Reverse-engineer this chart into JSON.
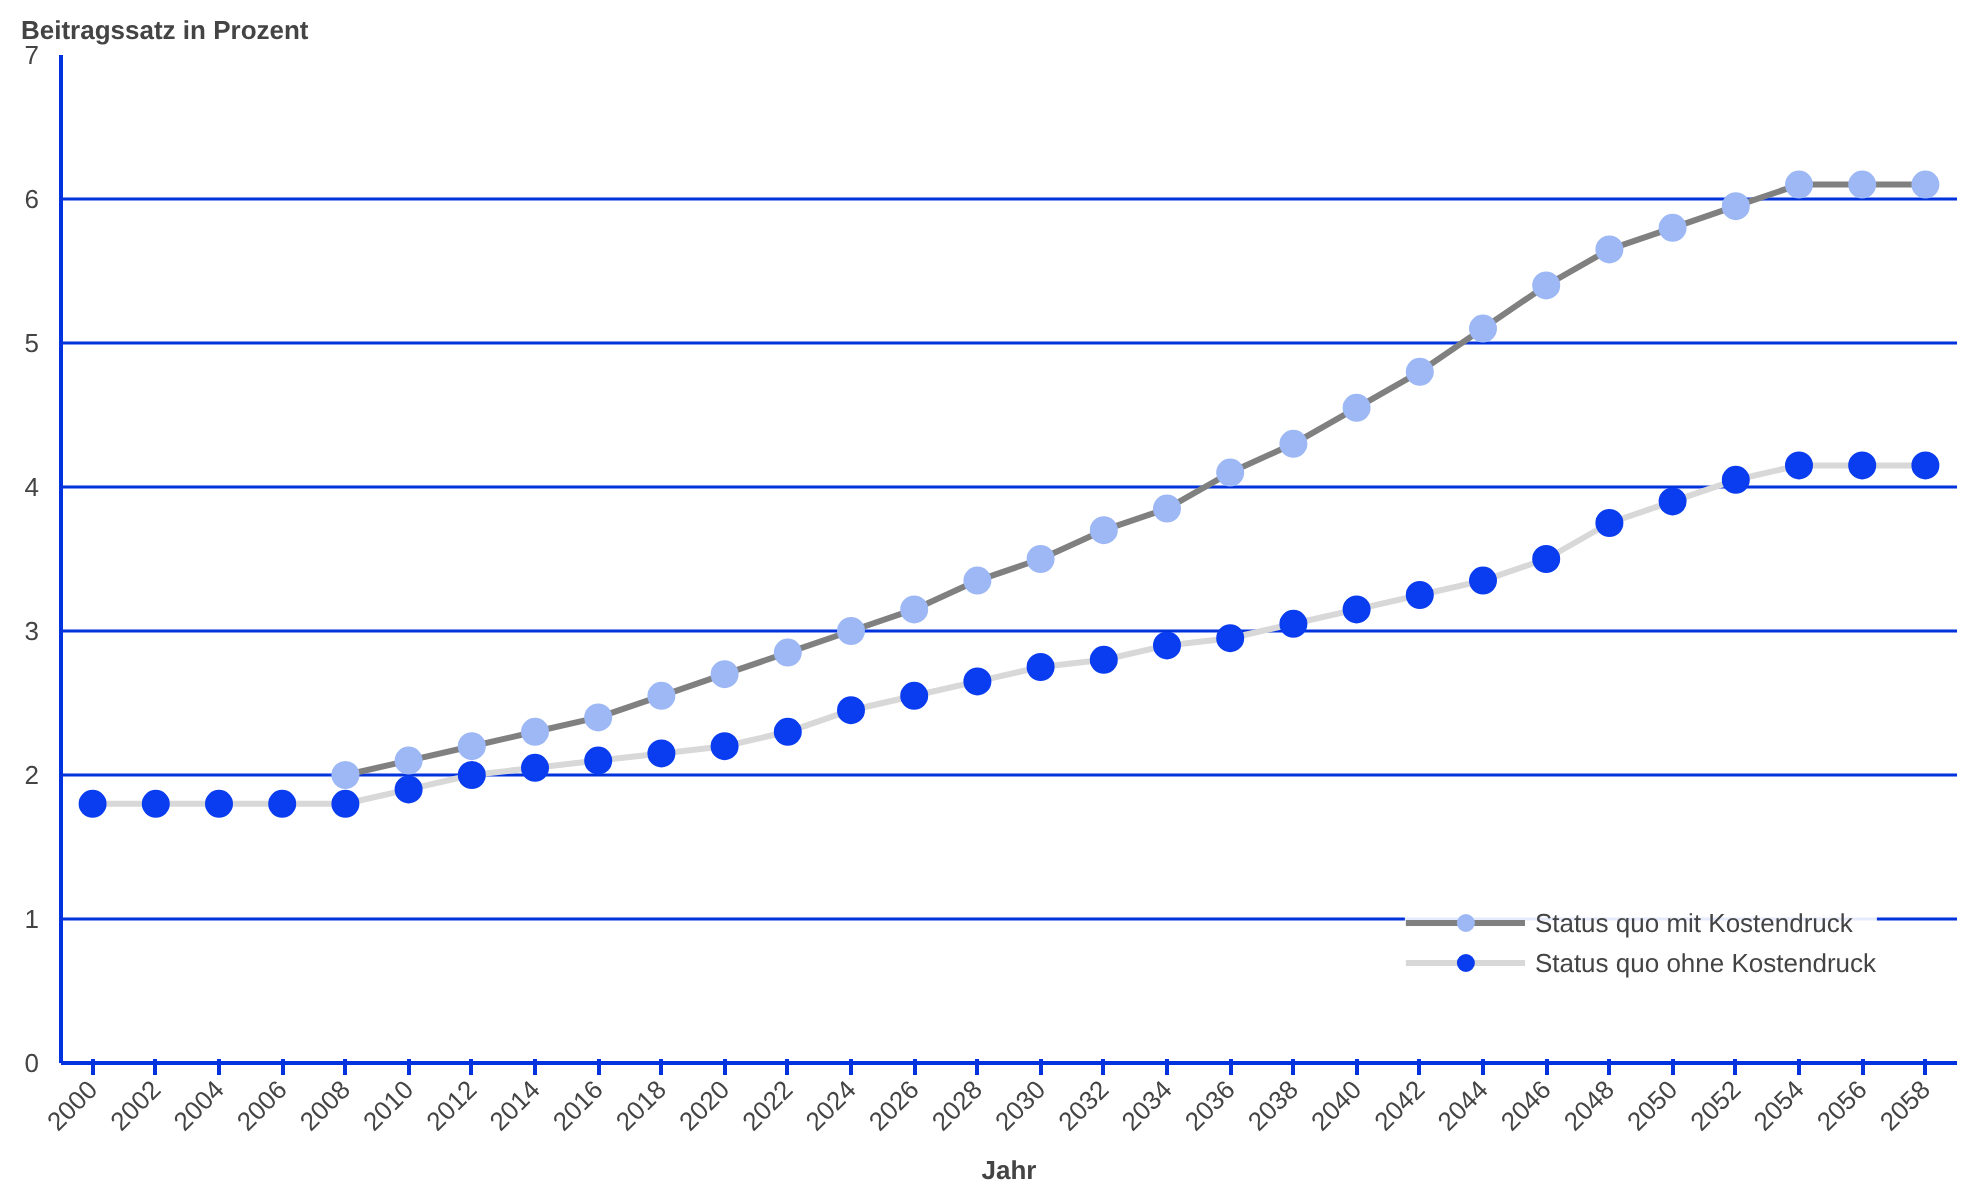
{
  "chart_data": {
    "type": "line",
    "ylabel": "Beitragssatz in Prozent",
    "xlabel": "Jahr",
    "x": [
      2000,
      2002,
      2004,
      2006,
      2008,
      2010,
      2012,
      2014,
      2016,
      2018,
      2020,
      2022,
      2024,
      2026,
      2028,
      2030,
      2032,
      2034,
      2036,
      2038,
      2040,
      2042,
      2044,
      2046,
      2048,
      2050,
      2052,
      2054,
      2056,
      2058
    ],
    "series": [
      {
        "name": "Status quo mit Kostendruck",
        "color": "#808080",
        "colors": [
          "#9db8f5",
          "#9db8f5",
          "#9db8f5",
          "#9db8f5",
          "#9db8f5",
          "#9db8f5",
          "#9db8f5",
          "#9db8f5",
          "#9db8f5",
          "#9db8f5",
          "#9db8f5",
          "#9db8f5",
          "#9db8f5",
          "#9db8f5",
          "#9db8f5",
          "#9db8f5",
          "#9db8f5",
          "#9db8f5",
          "#9db8f5",
          "#9db8f5",
          "#9db8f5",
          "#9db8f5",
          "#9db8f5",
          "#9db8f5",
          "#9db8f5",
          "#9db8f5",
          "#9db8f5",
          "#9db8f5",
          "#9db8f5",
          "#9db8f5"
        ],
        "values": [
          null,
          null,
          null,
          null,
          2.0,
          2.1,
          2.2,
          2.3,
          2.4,
          2.55,
          2.7,
          2.85,
          3.0,
          3.15,
          3.35,
          3.5,
          3.7,
          3.85,
          4.1,
          4.3,
          4.55,
          4.8,
          5.1,
          5.4,
          5.65,
          5.8,
          5.95,
          6.1,
          6.1,
          6.1
        ]
      },
      {
        "name": "Status quo ohne Kostendruck",
        "color": "#d8d8d8",
        "colors": [
          "#0a3cf0",
          "#0a3cf0",
          "#0a3cf0",
          "#0a3cf0",
          "#0a3cf0",
          "#0a3cf0",
          "#0a3cf0",
          "#0a3cf0",
          "#0a3cf0",
          "#0a3cf0",
          "#0a3cf0",
          "#0a3cf0",
          "#0a3cf0",
          "#0a3cf0",
          "#0a3cf0",
          "#0a3cf0",
          "#0a3cf0",
          "#0a3cf0",
          "#0a3cf0",
          "#0a3cf0",
          "#0a3cf0",
          "#0a3cf0",
          "#0a3cf0",
          "#0a3cf0",
          "#0a3cf0",
          "#0a3cf0",
          "#0a3cf0",
          "#0a3cf0",
          "#0a3cf0",
          "#0a3cf0"
        ],
        "values": [
          1.8,
          1.8,
          1.8,
          1.8,
          1.8,
          1.9,
          2.0,
          2.05,
          2.1,
          2.15,
          2.2,
          2.3,
          2.45,
          2.55,
          2.65,
          2.75,
          2.8,
          2.9,
          2.95,
          3.05,
          3.15,
          3.25,
          3.35,
          3.5,
          3.75,
          3.9,
          4.05,
          4.15,
          4.15,
          4.15
        ]
      }
    ],
    "xlim": [
      1999,
      2059
    ],
    "xticks": [
      2000,
      2002,
      2004,
      2006,
      2008,
      2010,
      2012,
      2014,
      2016,
      2018,
      2020,
      2022,
      2024,
      2026,
      2028,
      2030,
      2032,
      2034,
      2036,
      2038,
      2040,
      2042,
      2044,
      2046,
      2048,
      2050,
      2052,
      2054,
      2056,
      2058
    ],
    "ylim": [
      0,
      7
    ],
    "yticks": [
      0,
      1,
      2,
      3,
      4,
      5,
      6,
      7
    ],
    "grid": "y",
    "legend": "bottom right",
    "marker": "circle",
    "line_style": "solid"
  }
}
